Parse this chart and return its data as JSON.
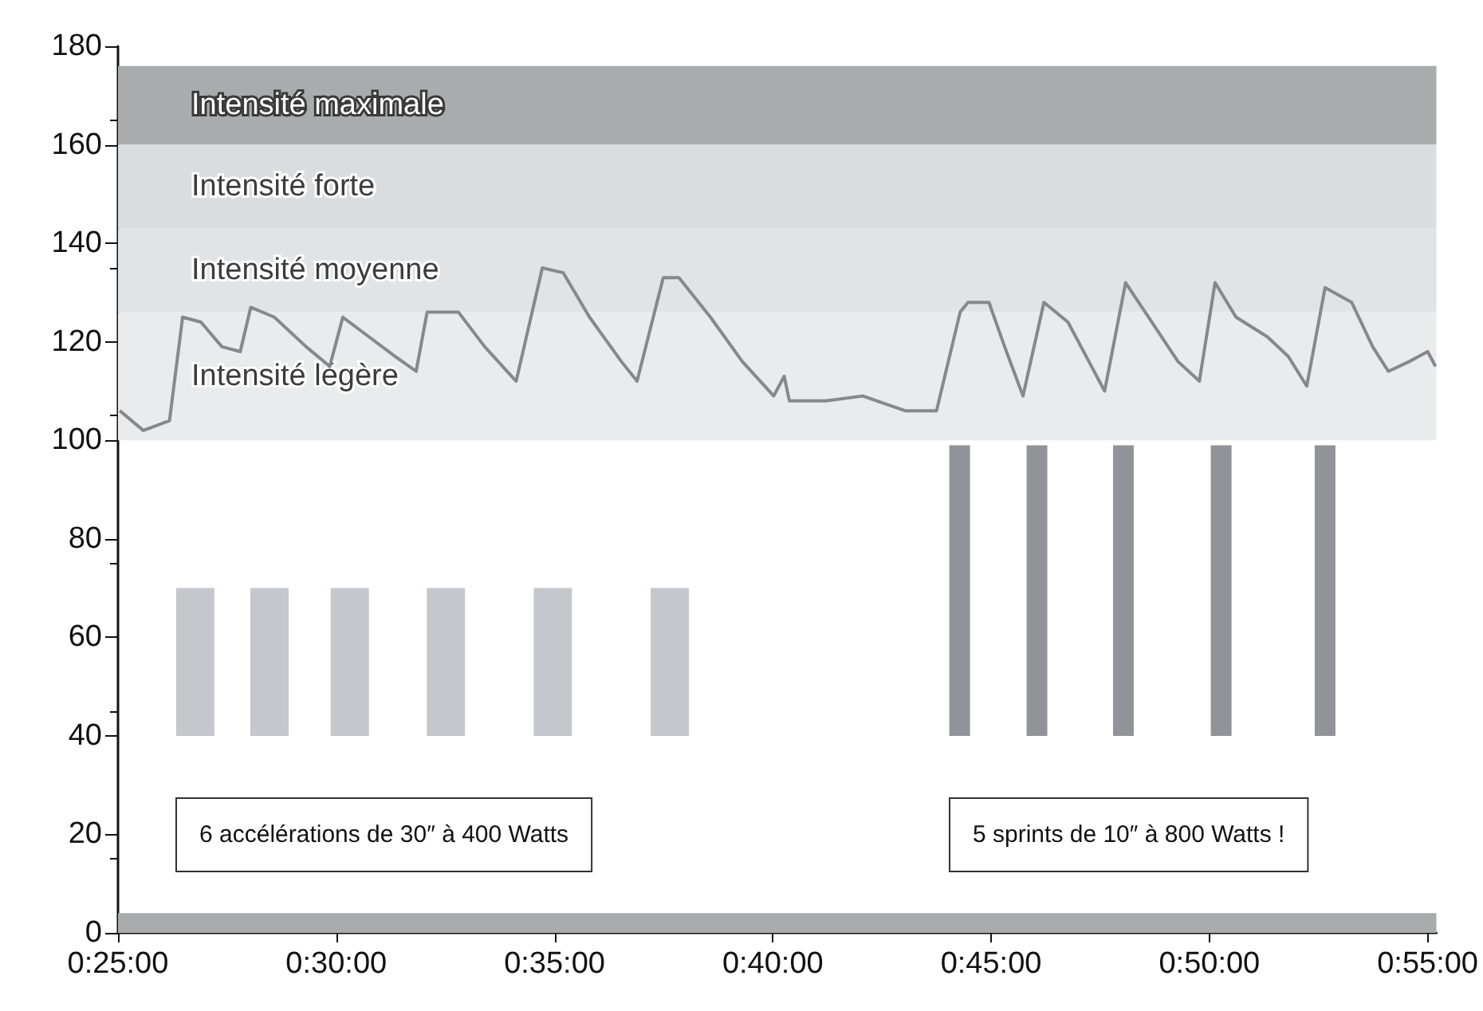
{
  "chart_data": {
    "type": "line",
    "x": [
      25.04,
      25.58,
      26.18,
      26.48,
      26.9,
      27.38,
      27.8,
      28.04,
      28.58,
      29.31,
      29.85,
      30.15,
      30.75,
      31.35,
      31.83,
      32.08,
      32.8,
      33.4,
      34.12,
      34.72,
      35.2,
      35.8,
      36.53,
      36.89,
      37.49,
      37.85,
      38.57,
      39.3,
      40.02,
      40.26,
      40.38,
      41.22,
      42.06,
      43.03,
      43.75,
      44.29,
      44.47,
      44.95,
      45.31,
      45.73,
      46.21,
      46.76,
      47.24,
      47.6,
      48.08,
      48.68,
      49.28,
      49.77,
      50.13,
      50.61,
      51.33,
      51.81,
      52.23,
      52.65,
      53.26,
      53.74,
      54.1,
      54.58,
      55.0,
      55.18
    ],
    "series": [
      {
        "color": "#85898d",
        "values": [
          106,
          102,
          104,
          125,
          124,
          119,
          118,
          127,
          125,
          119,
          115,
          125,
          121,
          117,
          114,
          126,
          126,
          119,
          112,
          135,
          134,
          125,
          116,
          112,
          133,
          133,
          125,
          116,
          109,
          113,
          108,
          108,
          109,
          106,
          106,
          126,
          128,
          128,
          119,
          109,
          128,
          124,
          116,
          110,
          132,
          124,
          116,
          112,
          132,
          125,
          121,
          117,
          111,
          131,
          128,
          119,
          114,
          116,
          118,
          115
        ]
      },
      {
        "type": "bar",
        "color": "#c4c8cc",
        "x": [
          26.77,
          28.47,
          30.31,
          32.51,
          34.96,
          37.64
        ],
        "base": [
          40,
          40,
          40,
          40,
          40,
          40
        ],
        "values": [
          30,
          30,
          30,
          30,
          30,
          30
        ]
      },
      {
        "type": "bar",
        "color": "#909397",
        "x": [
          44.28,
          46.05,
          48.03,
          50.27,
          52.65
        ],
        "base": [
          40,
          40,
          40,
          40,
          40
        ],
        "values": [
          59,
          59,
          59,
          59,
          59
        ]
      }
    ],
    "bands": [
      {
        "axis": "y",
        "from": 160,
        "to": 176,
        "label": "Intensité maximale",
        "color": "#a9abad"
      },
      {
        "axis": "y",
        "from": 143,
        "to": 160,
        "label": "Intensité forte",
        "color": "#dadde0"
      },
      {
        "axis": "y",
        "from": 126,
        "to": 143,
        "label": "Intensité moyenne",
        "color": "#e1e4e7"
      },
      {
        "axis": "y",
        "from": 100,
        "to": 126,
        "label": "Intensité légère",
        "color": "#e9ebed"
      },
      {
        "axis": "y",
        "from": 0,
        "to": 4,
        "label": null,
        "color": "#a9abad"
      }
    ],
    "annotations": [
      "6 accélérations de 30″ à 400 Watts",
      "5 sprints de 10″ à 800 Watts !"
    ],
    "xlim": [
      25,
      55.2
    ],
    "xticks": [
      {
        "value": 25,
        "label": "0:25:00"
      },
      {
        "value": 30,
        "label": "0:30:00"
      },
      {
        "value": 35,
        "label": "0:35:00"
      },
      {
        "value": 40,
        "label": "0:40:00"
      },
      {
        "value": 45,
        "label": "0:45:00"
      },
      {
        "value": 50,
        "label": "0:50:00"
      },
      {
        "value": 55,
        "label": "0:55:00"
      }
    ],
    "ylim": [
      0,
      180
    ],
    "yticks": [
      0,
      20,
      40,
      60,
      80,
      100,
      120,
      140,
      160,
      180
    ],
    "grid": false,
    "marker": "none",
    "line_style": "solid"
  }
}
